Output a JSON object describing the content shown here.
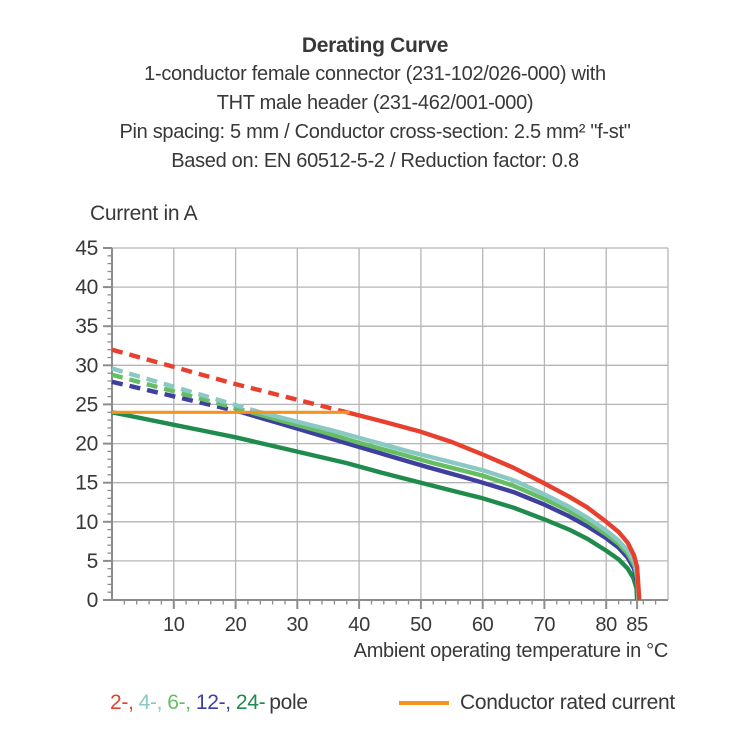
{
  "header": {
    "title": "Derating Curve",
    "subtitle_lines": [
      "1-conductor female connector (231-102/026-000) with",
      "THT male header (231-462/001-000)",
      "Pin spacing: 5 mm / Conductor cross-section: 2.5 mm² \"f-st\"",
      "Based on: EN 60512-5-2 / Reduction factor: 0.8"
    ]
  },
  "axes": {
    "y_unit_label": "Current in A",
    "x_title": "Ambient operating temperature in °C"
  },
  "legend": {
    "poles": [
      {
        "label": "2-,",
        "color": "#e8402f"
      },
      {
        "label": "4-,",
        "color": "#8ac8c4"
      },
      {
        "label": "6-,",
        "color": "#67be62"
      },
      {
        "label": "12-,",
        "color": "#3f3fa0"
      },
      {
        "label": "24-",
        "color": "#1f8b4c"
      }
    ],
    "poles_suffix": "pole",
    "rated_label": "Conductor rated current",
    "rated_color": "#f6921e"
  },
  "chart_data": {
    "type": "line",
    "title": "Derating Curve",
    "xlabel": "Ambient operating temperature in °C",
    "ylabel": "Current in A",
    "xlim": [
      0,
      90
    ],
    "ylim": [
      0,
      45
    ],
    "x_ticks": [
      10,
      20,
      30,
      40,
      50,
      60,
      70,
      80,
      85
    ],
    "x_minor_step": 2,
    "y_ticks": [
      0,
      5,
      10,
      15,
      20,
      25,
      30,
      35,
      40,
      45
    ],
    "y_minor_step": 1,
    "x_gridlines": [
      10,
      20,
      30,
      40,
      50,
      60,
      70,
      80,
      90
    ],
    "y_gridlines": [
      5,
      10,
      15,
      20,
      25,
      30,
      35,
      40,
      45
    ],
    "grid": true,
    "legend_position": "bottom",
    "series": [
      {
        "name": "24-pole",
        "color": "#1f8b4c",
        "solid": [
          [
            0,
            24
          ],
          [
            5,
            23.2
          ],
          [
            10,
            22.4
          ],
          [
            15,
            21.6
          ],
          [
            20,
            20.8
          ],
          [
            26,
            19.7
          ],
          [
            32,
            18.6
          ],
          [
            38,
            17.5
          ],
          [
            44,
            16.2
          ],
          [
            50,
            15.0
          ],
          [
            56,
            13.8
          ],
          [
            60,
            13.0
          ],
          [
            65,
            11.8
          ],
          [
            70,
            10.3
          ],
          [
            74,
            9.0
          ],
          [
            77,
            7.8
          ],
          [
            80,
            6.3
          ],
          [
            82,
            5.2
          ],
          [
            83.5,
            4.0
          ],
          [
            84.4,
            2.8
          ],
          [
            84.9,
            1.5
          ],
          [
            85,
            0
          ]
        ]
      },
      {
        "name": "12-pole",
        "color": "#3f3fa0",
        "dashed": [
          [
            0,
            27.9
          ],
          [
            21,
            24
          ]
        ],
        "solid": [
          [
            21,
            24
          ],
          [
            27,
            22.6
          ],
          [
            33,
            21.2
          ],
          [
            39,
            19.8
          ],
          [
            45,
            18.4
          ],
          [
            51,
            17.0
          ],
          [
            57,
            15.7
          ],
          [
            60,
            15.0
          ],
          [
            65,
            13.8
          ],
          [
            70,
            12.2
          ],
          [
            74,
            10.7
          ],
          [
            77,
            9.4
          ],
          [
            80,
            7.9
          ],
          [
            82,
            6.7
          ],
          [
            83.5,
            5.4
          ],
          [
            84.5,
            4.0
          ],
          [
            85,
            2.3
          ],
          [
            85.15,
            0
          ]
        ]
      },
      {
        "name": "6-pole",
        "color": "#67be62",
        "dashed": [
          [
            0,
            28.8
          ],
          [
            22.5,
            24
          ]
        ],
        "solid": [
          [
            22.5,
            24
          ],
          [
            28,
            22.8
          ],
          [
            34,
            21.5
          ],
          [
            40,
            20.1
          ],
          [
            46,
            18.8
          ],
          [
            52,
            17.5
          ],
          [
            58,
            16.3
          ],
          [
            60,
            15.9
          ],
          [
            65,
            14.6
          ],
          [
            70,
            12.9
          ],
          [
            74,
            11.4
          ],
          [
            77,
            10.0
          ],
          [
            80,
            8.4
          ],
          [
            82,
            7.2
          ],
          [
            83.5,
            5.9
          ],
          [
            84.6,
            4.4
          ],
          [
            85.05,
            2.6
          ],
          [
            85.2,
            0
          ]
        ]
      },
      {
        "name": "4-pole",
        "color": "#8ac8c4",
        "dashed": [
          [
            0,
            29.6
          ],
          [
            24,
            24
          ]
        ],
        "solid": [
          [
            24,
            24
          ],
          [
            30,
            22.8
          ],
          [
            36,
            21.6
          ],
          [
            42,
            20.3
          ],
          [
            48,
            19.0
          ],
          [
            54,
            17.8
          ],
          [
            60,
            16.6
          ],
          [
            65,
            15.3
          ],
          [
            70,
            13.5
          ],
          [
            74,
            11.9
          ],
          [
            77,
            10.5
          ],
          [
            80,
            8.9
          ],
          [
            82,
            7.6
          ],
          [
            83.5,
            6.3
          ],
          [
            84.6,
            4.8
          ],
          [
            85.1,
            3.0
          ],
          [
            85.25,
            0
          ]
        ]
      },
      {
        "name": "2-pole",
        "color": "#e8402f",
        "dashed": [
          [
            0,
            32
          ],
          [
            20,
            27.6
          ],
          [
            38,
            24
          ]
        ],
        "solid": [
          [
            38,
            24
          ],
          [
            44,
            22.8
          ],
          [
            50,
            21.5
          ],
          [
            55,
            20.2
          ],
          [
            60,
            18.6
          ],
          [
            65,
            16.9
          ],
          [
            70,
            14.9
          ],
          [
            74,
            13.2
          ],
          [
            77,
            11.8
          ],
          [
            80,
            10.0
          ],
          [
            82,
            8.7
          ],
          [
            83.5,
            7.3
          ],
          [
            84.5,
            5.7
          ],
          [
            85,
            4.2
          ],
          [
            85.35,
            0
          ]
        ]
      },
      {
        "name": "Conductor rated current",
        "color": "#f6921e",
        "width": 3.2,
        "solid": [
          [
            0,
            24
          ],
          [
            38.5,
            24
          ]
        ]
      }
    ]
  }
}
